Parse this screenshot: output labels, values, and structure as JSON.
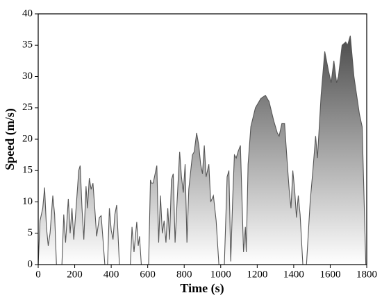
{
  "chart_data": {
    "type": "area",
    "x_label": "Time (s)",
    "y_label": "Speed (m/s)",
    "x": [
      0,
      10,
      25,
      35,
      45,
      55,
      65,
      80,
      90,
      100,
      130,
      140,
      150,
      165,
      175,
      185,
      195,
      210,
      222,
      230,
      240,
      250,
      262,
      270,
      280,
      290,
      300,
      310,
      320,
      335,
      345,
      355,
      365,
      380,
      390,
      400,
      410,
      420,
      430,
      445,
      505,
      514,
      525,
      540,
      548,
      555,
      565,
      605,
      615,
      620,
      630,
      650,
      660,
      670,
      680,
      690,
      700,
      710,
      720,
      730,
      740,
      750,
      760,
      775,
      785,
      795,
      805,
      815,
      825,
      845,
      855,
      868,
      880,
      890,
      900,
      910,
      920,
      935,
      945,
      960,
      975,
      990,
      1020,
      1035,
      1045,
      1055,
      1065,
      1075,
      1085,
      1095,
      1108,
      1115,
      1125,
      1135,
      1140,
      1150,
      1165,
      1190,
      1220,
      1245,
      1265,
      1290,
      1310,
      1320,
      1335,
      1350,
      1365,
      1375,
      1385,
      1395,
      1405,
      1415,
      1425,
      1435,
      1450,
      1470,
      1490,
      1505,
      1520,
      1530,
      1550,
      1570,
      1590,
      1605,
      1620,
      1635,
      1645,
      1665,
      1685,
      1695,
      1710,
      1730,
      1760,
      1775,
      1795
    ],
    "values": [
      0,
      7,
      9,
      12.3,
      6,
      3,
      5,
      11,
      8,
      0,
      0,
      8,
      3.5,
      10.5,
      5,
      9,
      4,
      10,
      15,
      15.8,
      9,
      4,
      12.5,
      9,
      13.8,
      12,
      13,
      9,
      4.5,
      7.5,
      7.8,
      4,
      0,
      0,
      9,
      5.5,
      4,
      8,
      9.5,
      0,
      0,
      6,
      2,
      6.8,
      3,
      4.5,
      0,
      0,
      13.5,
      13,
      13,
      15.8,
      3.5,
      11,
      5,
      7,
      3.5,
      9,
      4,
      13.5,
      14.5,
      3.5,
      9.5,
      18,
      14,
      11.5,
      16,
      3.5,
      12,
      17.5,
      18,
      21,
      19,
      16,
      14.5,
      19,
      14,
      16,
      10,
      11,
      7,
      0,
      0,
      14,
      15,
      0.5,
      10,
      17.5,
      17,
      18,
      19,
      12,
      2,
      6,
      2,
      16,
      22,
      25,
      26.5,
      27,
      26,
      23,
      21,
      20.5,
      22.5,
      22.5,
      16,
      12,
      9,
      15,
      12,
      7.5,
      11,
      8,
      0,
      0,
      10,
      15,
      20.5,
      17,
      27,
      34,
      31,
      29,
      32.5,
      29,
      30,
      35,
      35.5,
      35,
      36.5,
      30,
      24,
      22,
      0
    ],
    "line_color": "#555555",
    "fill_top_color": "#3a3a3a",
    "fill_bottom_color": "#ffffff",
    "xlim": [
      0,
      1800
    ],
    "xticks": [
      0,
      200,
      400,
      600,
      800,
      1000,
      1200,
      1400,
      1600,
      1800
    ],
    "ylim": [
      0,
      40
    ],
    "yticks": [
      0,
      5,
      10,
      15,
      20,
      25,
      30,
      35,
      40
    ]
  }
}
